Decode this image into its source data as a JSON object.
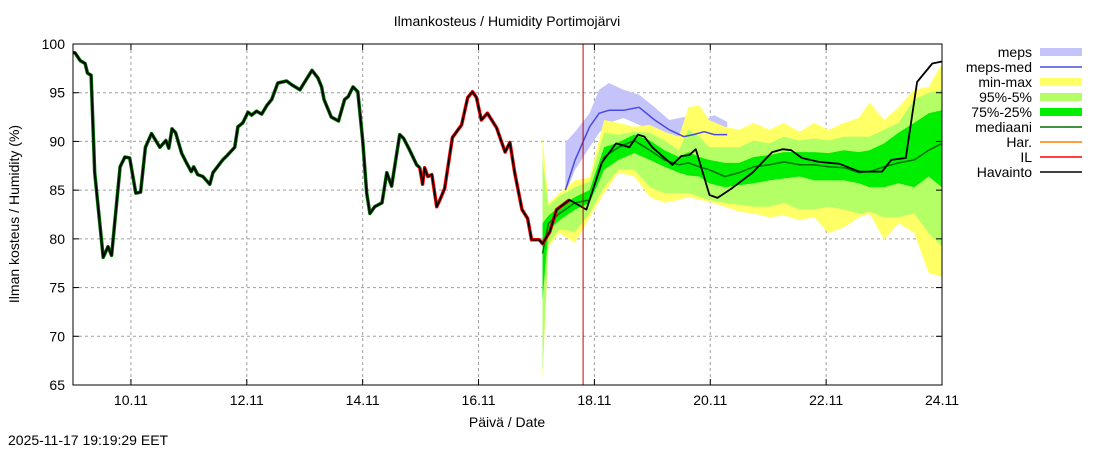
{
  "chart_data": {
    "type": "line",
    "title": "Ilmankosteus / Humidity  Portimojärvi",
    "xlabel": "Päivä / Date",
    "ylabel": "Ilman kosteus / Humidity (%)",
    "timestamp": "2025-11-17 19:19:29 EET",
    "xlim": [
      "09.11 00:00",
      "24.11 00:00"
    ],
    "ylim": [
      65,
      100
    ],
    "yticks": [
      65,
      70,
      75,
      80,
      85,
      90,
      95,
      100
    ],
    "xticks": [
      "10.11",
      "12.11",
      "14.11",
      "16.11",
      "18.11",
      "20.11",
      "22.11",
      "24.11"
    ],
    "grid": true,
    "legend_position": "right",
    "now_marker": "17.11 19:19",
    "colors": {
      "meps": "#c4c4fa",
      "meps_med": "#4a4ae0",
      "minmax": "#ffff66",
      "p95_5": "#b4ff66",
      "p75_25": "#00ee00",
      "mediaani": "#007000",
      "har": "#ff8000",
      "il": "#ff0000",
      "havainto": "#000000",
      "now_line": "#cc0000"
    },
    "legend": [
      {
        "label": "meps",
        "key": "meps",
        "kind": "band"
      },
      {
        "label": "meps-med",
        "key": "meps_med",
        "kind": "line"
      },
      {
        "label": "min-max",
        "key": "minmax",
        "kind": "band"
      },
      {
        "label": "95%-5%",
        "key": "p95_5",
        "kind": "band"
      },
      {
        "label": "75%-25%",
        "key": "p75_25",
        "kind": "band"
      },
      {
        "label": "mediaani",
        "key": "mediaani",
        "kind": "line"
      },
      {
        "label": "Har.",
        "key": "har",
        "kind": "line"
      },
      {
        "label": "IL",
        "key": "il",
        "kind": "line"
      },
      {
        "label": "Havainto",
        "key": "havainto",
        "kind": "line"
      }
    ],
    "forecast_columns": [
      "time",
      "max",
      "p95",
      "p75",
      "p25",
      "p5",
      "min",
      "median"
    ],
    "forecast": [
      [
        "17.11 02:30",
        90.5,
        88.1,
        81.6,
        73.7,
        66.2,
        65.5,
        78.5
      ],
      [
        "17.11 05:00",
        83.7,
        83.4,
        82.4,
        80.9,
        79.5,
        79.2,
        81.6
      ],
      [
        "17.11 09:30",
        84.7,
        84.4,
        83.3,
        81.9,
        81.0,
        80.6,
        82.6
      ],
      [
        "17.11 16:00",
        86.0,
        85.3,
        84.3,
        83.0,
        80.7,
        79.6,
        83.7
      ],
      [
        "17.11 22:00",
        86.3,
        85.9,
        85.0,
        83.7,
        82.6,
        82.2,
        84.0
      ],
      [
        "18.11 04:00",
        92.2,
        90.9,
        89.4,
        87.1,
        85.3,
        84.7,
        88.4
      ],
      [
        "18.11 10:00",
        91.9,
        90.7,
        89.9,
        88.1,
        87.1,
        86.8,
        89.4
      ],
      [
        "18.11 16:30",
        91.5,
        91.0,
        90.7,
        88.8,
        87.1,
        86.4,
        90.1
      ],
      [
        "18.11 23:00",
        91.7,
        90.9,
        90.1,
        88.1,
        85.3,
        84.3,
        89.1
      ],
      [
        "19.11 05:00",
        91.0,
        90.1,
        89.1,
        87.4,
        84.7,
        83.7,
        88.1
      ],
      [
        "19.11 11:00",
        90.5,
        89.1,
        88.4,
        86.8,
        84.7,
        84.0,
        87.6
      ],
      [
        "19.11 15:00",
        93.5,
        91.2,
        88.9,
        86.5,
        84.7,
        84.3,
        87.8
      ],
      [
        "19.11 19:30",
        93.7,
        90.5,
        88.4,
        86.4,
        84.3,
        84.0,
        87.4
      ],
      [
        "19.11 23:30",
        92.2,
        89.4,
        88.1,
        85.7,
        84.0,
        83.8,
        87.1
      ],
      [
        "20.11 06:00",
        91.5,
        89.4,
        87.8,
        85.3,
        83.7,
        83.3,
        86.4
      ],
      [
        "20.11 12:00",
        91.2,
        89.4,
        87.8,
        85.5,
        83.5,
        82.8,
        86.8
      ],
      [
        "20.11 18:00",
        91.9,
        90.1,
        88.4,
        85.7,
        83.3,
        82.6,
        87.4
      ],
      [
        "21.11 00:30",
        91.2,
        89.8,
        88.6,
        86.0,
        83.3,
        82.2,
        87.6
      ],
      [
        "21.11 06:30",
        91.9,
        90.5,
        88.9,
        86.2,
        83.7,
        82.4,
        87.9
      ],
      [
        "21.11 13:00",
        91.0,
        90.1,
        88.9,
        86.4,
        83.0,
        81.9,
        87.6
      ],
      [
        "21.11 19:00",
        91.9,
        90.3,
        88.9,
        86.0,
        83.0,
        82.2,
        87.6
      ],
      [
        "22.11 01:00",
        91.2,
        90.1,
        88.8,
        86.0,
        83.3,
        80.6,
        87.4
      ],
      [
        "22.11 07:30",
        91.9,
        90.5,
        89.1,
        86.0,
        83.0,
        81.2,
        87.3
      ],
      [
        "22.11 13:30",
        92.4,
        90.5,
        88.9,
        85.7,
        82.6,
        82.2,
        86.8
      ],
      [
        "22.11 18:00",
        94.0,
        90.5,
        89.1,
        85.3,
        82.8,
        82.6,
        86.9
      ],
      [
        "23.11 00:00",
        92.2,
        91.2,
        89.8,
        85.3,
        82.2,
        79.9,
        87.4
      ],
      [
        "23.11 06:00",
        93.5,
        91.9,
        90.9,
        85.7,
        82.2,
        81.6,
        87.8
      ],
      [
        "23.11 12:30",
        95.3,
        94.3,
        91.9,
        85.3,
        82.6,
        80.6,
        88.1
      ],
      [
        "23.11 18:30",
        95.6,
        95.0,
        92.9,
        86.4,
        80.6,
        76.5,
        89.1
      ],
      [
        "24.11 00:00",
        98.0,
        95.3,
        93.2,
        85.3,
        79.2,
        76.1,
        89.8
      ]
    ],
    "meps_columns": [
      "time",
      "max",
      "min",
      "median"
    ],
    "meps": [
      [
        "17.11 12:00",
        89.9,
        84.7,
        85.0
      ],
      [
        "17.11 16:00",
        91.0,
        87.1,
        88.1
      ],
      [
        "17.11 22:00",
        92.9,
        89.4,
        91.5
      ],
      [
        "18.11 02:00",
        95.3,
        90.9,
        92.9
      ],
      [
        "18.11 06:00",
        96.0,
        91.9,
        93.2
      ],
      [
        "18.11 12:00",
        95.3,
        92.4,
        93.2
      ],
      [
        "18.11 18:30",
        94.8,
        91.7,
        93.5
      ],
      [
        "19.11 01:00",
        93.5,
        91.0,
        92.2
      ],
      [
        "19.11 07:00",
        92.2,
        90.7,
        91.2
      ],
      [
        "19.11 13:00",
        92.5,
        89.8,
        90.5
      ],
      [
        "19.11 17:00",
        92.5,
        89.9,
        90.7
      ],
      [
        "19.11 21:30",
        92.2,
        90.9,
        91.0
      ],
      [
        "20.11 01:40",
        92.7,
        90.7,
        90.7
      ],
      [
        "20.11 07:00",
        92.0,
        90.7,
        90.7
      ]
    ],
    "havainto": [
      [
        "09.11 00:00",
        99.1
      ],
      [
        "09.11 00:50",
        99.1
      ],
      [
        "09.11 03:00",
        98.3
      ],
      [
        "09.11 05:00",
        98.0
      ],
      [
        "09.11 06:00",
        97.0
      ],
      [
        "09.11 07:30",
        96.8
      ],
      [
        "09.11 09:00",
        86.8
      ],
      [
        "09.11 12:30",
        78.1
      ],
      [
        "09.11 14:30",
        79.2
      ],
      [
        "09.11 16:00",
        78.3
      ],
      [
        "09.11 19:30",
        87.4
      ],
      [
        "09.11 21:30",
        88.4
      ],
      [
        "09.11 23:30",
        88.3
      ],
      [
        "10.11 02:00",
        84.7
      ],
      [
        "10.11 04:00",
        84.8
      ],
      [
        "10.11 06:00",
        89.4
      ],
      [
        "10.11 08:30",
        90.8
      ],
      [
        "10.11 12:00",
        89.4
      ],
      [
        "10.11 14:30",
        90.1
      ],
      [
        "10.11 15:40",
        89.3
      ],
      [
        "10.11 17:00",
        91.3
      ],
      [
        "10.11 18:30",
        90.9
      ],
      [
        "10.11 21:00",
        88.8
      ],
      [
        "10.11 23:00",
        87.8
      ],
      [
        "11.11 01:00",
        86.9
      ],
      [
        "11.11 02:00",
        87.4
      ],
      [
        "11.11 03:40",
        86.6
      ],
      [
        "11.11 05:50",
        86.4
      ],
      [
        "11.11 08:40",
        85.6
      ],
      [
        "11.11 10:00",
        86.8
      ],
      [
        "11.11 14:00",
        88.1
      ],
      [
        "11.11 16:00",
        88.6
      ],
      [
        "11.11 19:00",
        89.4
      ],
      [
        "11.11 20:20",
        91.5
      ],
      [
        "11.11 22:20",
        91.9
      ],
      [
        "12.11 00:30",
        93.0
      ],
      [
        "12.11 02:00",
        92.7
      ],
      [
        "12.11 04:00",
        93.1
      ],
      [
        "12.11 06:10",
        92.8
      ],
      [
        "12.11 08:20",
        93.7
      ],
      [
        "12.11 10:20",
        94.3
      ],
      [
        "12.11 12:50",
        96.0
      ],
      [
        "12.11 16:30",
        96.2
      ],
      [
        "12.11 18:40",
        95.8
      ],
      [
        "12.11 22:00",
        95.3
      ],
      [
        "13.11 00:00",
        96.1
      ],
      [
        "13.11 03:00",
        97.3
      ],
      [
        "13.11 05:30",
        96.5
      ],
      [
        "13.11 07:00",
        95.6
      ],
      [
        "13.11 08:00",
        94.3
      ],
      [
        "13.11 11:00",
        92.5
      ],
      [
        "13.11 14:00",
        92.1
      ],
      [
        "13.11 16:30",
        94.3
      ],
      [
        "13.11 18:00",
        94.6
      ],
      [
        "13.11 20:00",
        95.6
      ],
      [
        "13.11 22:00",
        95.1
      ],
      [
        "14.11 00:00",
        90.1
      ],
      [
        "14.11 01:40",
        84.7
      ],
      [
        "14.11 03:00",
        82.6
      ],
      [
        "14.11 05:00",
        83.3
      ],
      [
        "14.11 08:00",
        83.7
      ],
      [
        "14.11 10:00",
        86.8
      ],
      [
        "14.11 12:00",
        85.4
      ],
      [
        "14.11 15:20",
        90.7
      ],
      [
        "14.11 17:00",
        90.3
      ],
      [
        "14.11 19:30",
        89.1
      ],
      [
        "14.11 22:20",
        87.6
      ],
      [
        "14.11 23:40",
        87.3
      ],
      [
        "15.11 00:50",
        85.6
      ],
      [
        "15.11 01:40",
        87.3
      ],
      [
        "15.11 03:00",
        86.4
      ],
      [
        "15.11 04:40",
        86.6
      ],
      [
        "15.11 06:40",
        83.3
      ],
      [
        "15.11 08:00",
        84.0
      ],
      [
        "15.11 10:00",
        85.2
      ],
      [
        "15.11 13:10",
        90.4
      ],
      [
        "15.11 17:00",
        91.7
      ],
      [
        "15.11 19:30",
        94.5
      ],
      [
        "15.11 21:30",
        95.1
      ],
      [
        "15.11 23:10",
        94.5
      ],
      [
        "16.11 01:10",
        92.2
      ],
      [
        "16.11 03:40",
        92.9
      ],
      [
        "16.11 07:30",
        91.4
      ],
      [
        "16.11 11:00",
        88.9
      ],
      [
        "16.11 13:00",
        89.9
      ],
      [
        "16.11 15:00",
        86.8
      ],
      [
        "16.11 18:00",
        83.0
      ],
      [
        "16.11 20:20",
        82.1
      ],
      [
        "16.11 22:00",
        79.9
      ],
      [
        "17.11 01:10",
        79.9
      ],
      [
        "17.11 02:30",
        79.5
      ],
      [
        "17.11 05:30",
        80.7
      ],
      [
        "17.11 08:20",
        83.0
      ],
      [
        "17.11 13:40",
        84.0
      ],
      [
        "17.11 20:40",
        83.0
      ],
      [
        "18.11 03:00",
        87.8
      ],
      [
        "18.11 09:00",
        89.8
      ],
      [
        "18.11 14:30",
        89.4
      ],
      [
        "18.11 18:00",
        90.7
      ],
      [
        "18.11 20:40",
        90.5
      ],
      [
        "19.11 00:00",
        89.4
      ],
      [
        "19.11 08:20",
        87.6
      ],
      [
        "19.11 12:00",
        88.5
      ],
      [
        "19.11 15:20",
        88.6
      ],
      [
        "19.11 18:00",
        89.2
      ],
      [
        "19.11 23:40",
        84.5
      ],
      [
        "20.11 03:00",
        84.2
      ],
      [
        "20.11 09:00",
        85.2
      ],
      [
        "20.11 17:30",
        86.8
      ],
      [
        "21.11 01:40",
        88.9
      ],
      [
        "21.11 06:00",
        89.2
      ],
      [
        "21.11 09:30",
        89.1
      ],
      [
        "21.11 14:00",
        88.3
      ],
      [
        "21.11 21:00",
        87.9
      ],
      [
        "22.11 05:30",
        87.7
      ],
      [
        "22.11 13:40",
        86.9
      ],
      [
        "22.11 23:10",
        86.9
      ],
      [
        "23.11 03:00",
        88.1
      ],
      [
        "23.11 09:00",
        88.3
      ],
      [
        "23.11 13:40",
        96.1
      ],
      [
        "23.11 20:00",
        98.0
      ],
      [
        "24.11 00:00",
        98.2
      ]
    ]
  }
}
